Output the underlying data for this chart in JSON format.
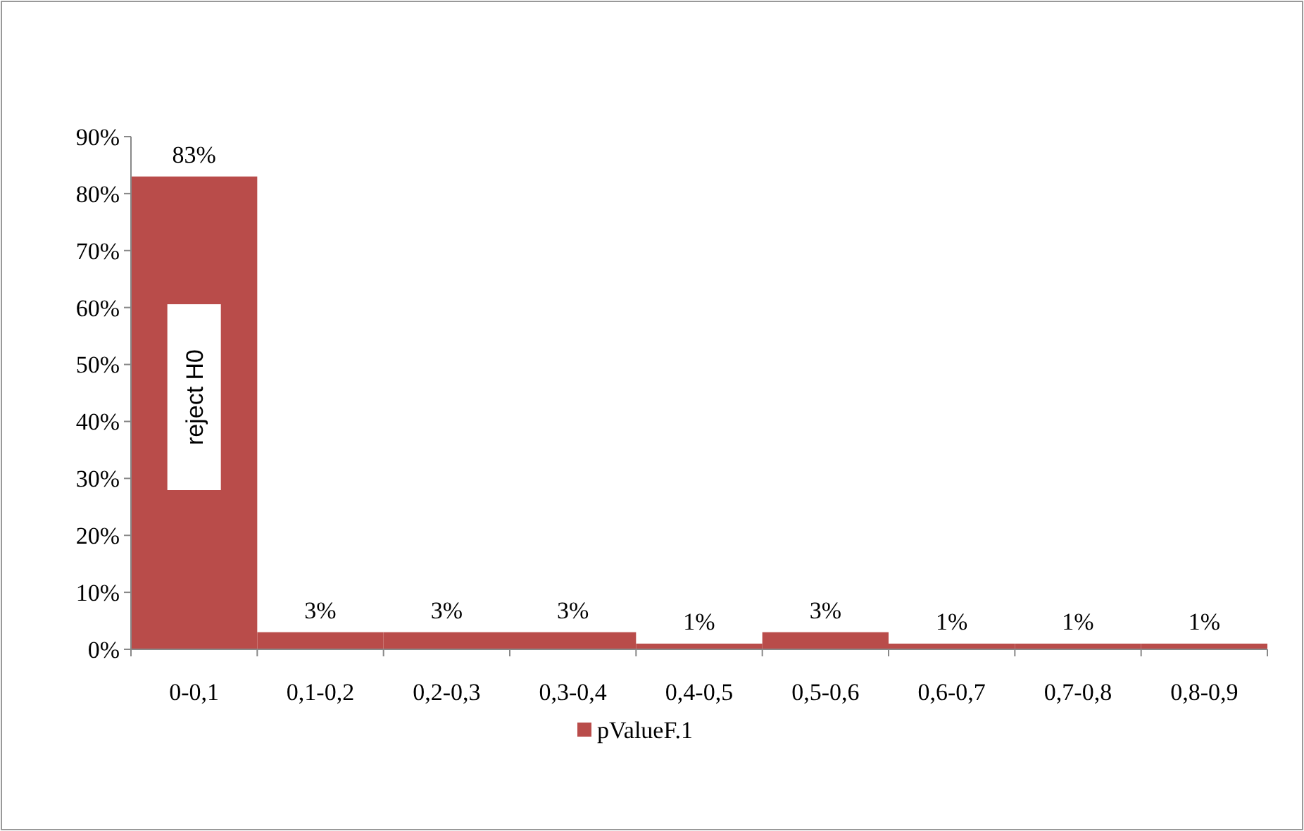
{
  "chart_data": {
    "type": "bar",
    "categories": [
      "0-0,1",
      "0,1-0,2",
      "0,2-0,3",
      "0,3-0,4",
      "0,4-0,5",
      "0,5-0,6",
      "0,6-0,7",
      "0,7-0,8",
      "0,8-0,9"
    ],
    "series": [
      {
        "name": "pValueF.1",
        "color": "#b94c4a",
        "values": [
          83,
          3,
          3,
          3,
          1,
          3,
          1,
          1,
          1
        ],
        "value_labels": [
          "83%",
          "3%",
          "3%",
          "3%",
          "1%",
          "3%",
          "1%",
          "1%",
          "1%"
        ]
      }
    ],
    "ylim": [
      0,
      90
    ],
    "yticks": [
      {
        "value": 0,
        "label": "0%"
      },
      {
        "value": 10,
        "label": "10%"
      },
      {
        "value": 20,
        "label": "20%"
      },
      {
        "value": 30,
        "label": "30%"
      },
      {
        "value": 40,
        "label": "40%"
      },
      {
        "value": 50,
        "label": "50%"
      },
      {
        "value": 60,
        "label": "60%"
      },
      {
        "value": 70,
        "label": "70%"
      },
      {
        "value": 80,
        "label": "80%"
      },
      {
        "value": 90,
        "label": "90%"
      }
    ],
    "annotations": [
      "reject H0"
    ],
    "grid": false,
    "legend": "bottom"
  }
}
